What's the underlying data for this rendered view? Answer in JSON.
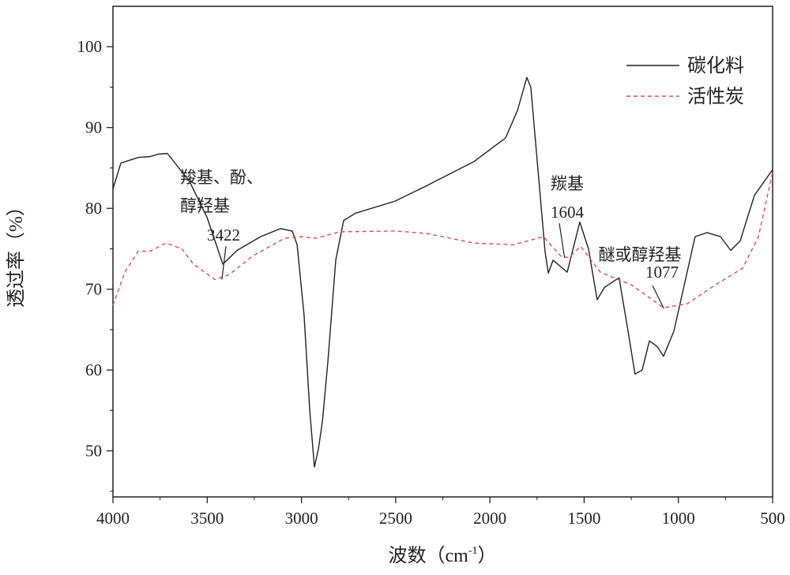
{
  "chart_data": {
    "type": "line",
    "title": "",
    "xlabel": "波数（cm",
    "xlabel_sup": "-1",
    "xlabel_end": "）",
    "ylabel": "透过率（%）",
    "xlim": [
      4000,
      500
    ],
    "ylim": [
      44.3,
      105
    ],
    "x_reversed": true,
    "grid": false,
    "legend_position": "top-right",
    "xticks": [
      4000,
      3500,
      3000,
      2500,
      2000,
      1500,
      1000,
      500
    ],
    "yticks": [
      50,
      60,
      70,
      80,
      90,
      100
    ],
    "series": [
      {
        "name": "碳化料",
        "color": "#222222",
        "style": "solid",
        "x": [
          4000,
          3958,
          3866,
          3803,
          3761,
          3711,
          3593,
          3501,
          3417,
          3342,
          3216,
          3111,
          3049,
          3023,
          2986,
          2956,
          2931,
          2910,
          2889,
          2860,
          2818,
          2776,
          2713,
          2503,
          2336,
          2084,
          1917,
          1854,
          1804,
          1783,
          1707,
          1690,
          1665,
          1590,
          1523,
          1477,
          1431,
          1393,
          1330,
          1314,
          1301,
          1267,
          1230,
          1192,
          1154,
          1112,
          1079,
          1024,
          911,
          848,
          777,
          722,
          672,
          597,
          500
        ],
        "y": [
          82.4,
          85.6,
          86.3,
          86.4,
          86.7,
          86.8,
          83.3,
          78.9,
          73.1,
          74.8,
          76.5,
          77.5,
          77.2,
          75.5,
          66.8,
          55.0,
          48.0,
          50.2,
          53.6,
          61.0,
          73.6,
          78.5,
          79.4,
          80.9,
          82.8,
          85.8,
          88.7,
          92.1,
          96.2,
          95.0,
          74.6,
          72.0,
          73.6,
          72.1,
          78.3,
          75.0,
          68.7,
          70.2,
          71.2,
          71.4,
          69.5,
          64.8,
          59.5,
          60.0,
          63.6,
          62.9,
          61.7,
          64.8,
          76.5,
          77.0,
          76.5,
          74.8,
          76.0,
          81.6,
          84.8
        ]
      },
      {
        "name": "活性炭",
        "color": "#d9534f",
        "style": "dashed",
        "x": [
          4000,
          3937,
          3866,
          3803,
          3719,
          3635,
          3573,
          3459,
          3384,
          3258,
          3090,
          3006,
          2922,
          2797,
          2503,
          2336,
          2084,
          1875,
          1716,
          1624,
          1582,
          1519,
          1414,
          1247,
          1079,
          953,
          806,
          659,
          575,
          500
        ],
        "y": [
          68.0,
          72.1,
          74.7,
          74.7,
          75.7,
          75.0,
          73.1,
          71.2,
          71.8,
          74.1,
          76.3,
          76.5,
          76.3,
          77.1,
          77.2,
          76.9,
          75.7,
          75.5,
          76.5,
          74.1,
          73.9,
          75.3,
          72.1,
          70.5,
          67.7,
          68.2,
          70.5,
          72.6,
          76.5,
          84.5
        ]
      }
    ],
    "annotations": [
      {
        "lines": [
          "羧基、酚、",
          "醇羟基"
        ],
        "value": "3422",
        "x": 3422,
        "y": 71.2
      },
      {
        "lines": [
          "羰基"
        ],
        "value": "1604",
        "x": 1604,
        "y": 73.9
      },
      {
        "lines": [
          "醚或醇羟基"
        ],
        "value": "1077",
        "x": 1077,
        "y": 67.6
      }
    ]
  }
}
